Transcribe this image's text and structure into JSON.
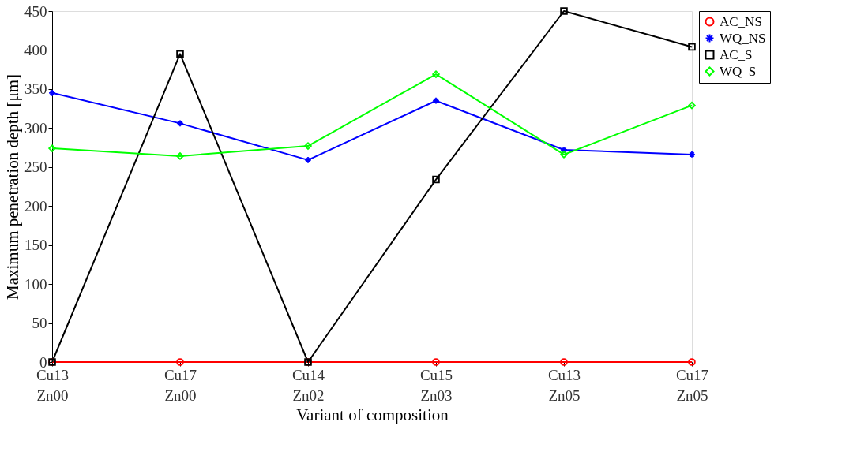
{
  "chart_data": {
    "type": "line",
    "xlabel": "Variant of composition",
    "ylabel": "Maximum penetration depth [μm]",
    "categories": [
      "Cu13\nZn00",
      "Cu17\nZn00",
      "Cu14\nZn02",
      "Cu15\nZn03",
      "Cu13\nZn05",
      "Cu17\nZn05"
    ],
    "series": [
      {
        "name": "AC_NS",
        "color": "#ff0000",
        "marker": "circle",
        "values": [
          0,
          0,
          0,
          0,
          0,
          0
        ]
      },
      {
        "name": "WQ_NS",
        "color": "#0000ff",
        "marker": "cross",
        "values": [
          345,
          306,
          259,
          335,
          272,
          266
        ]
      },
      {
        "name": "AC_S",
        "color": "#000000",
        "marker": "square",
        "values": [
          0,
          395,
          0,
          234,
          450,
          404
        ]
      },
      {
        "name": "WQ_S",
        "color": "#00ff00",
        "marker": "diamond",
        "values": [
          274,
          264,
          277,
          369,
          266,
          329
        ]
      }
    ],
    "ylim": [
      0,
      450
    ],
    "yticks": [
      0,
      50,
      100,
      150,
      200,
      250,
      300,
      350,
      400,
      450
    ],
    "grid": false,
    "legend": "right",
    "line_style": "solid"
  }
}
